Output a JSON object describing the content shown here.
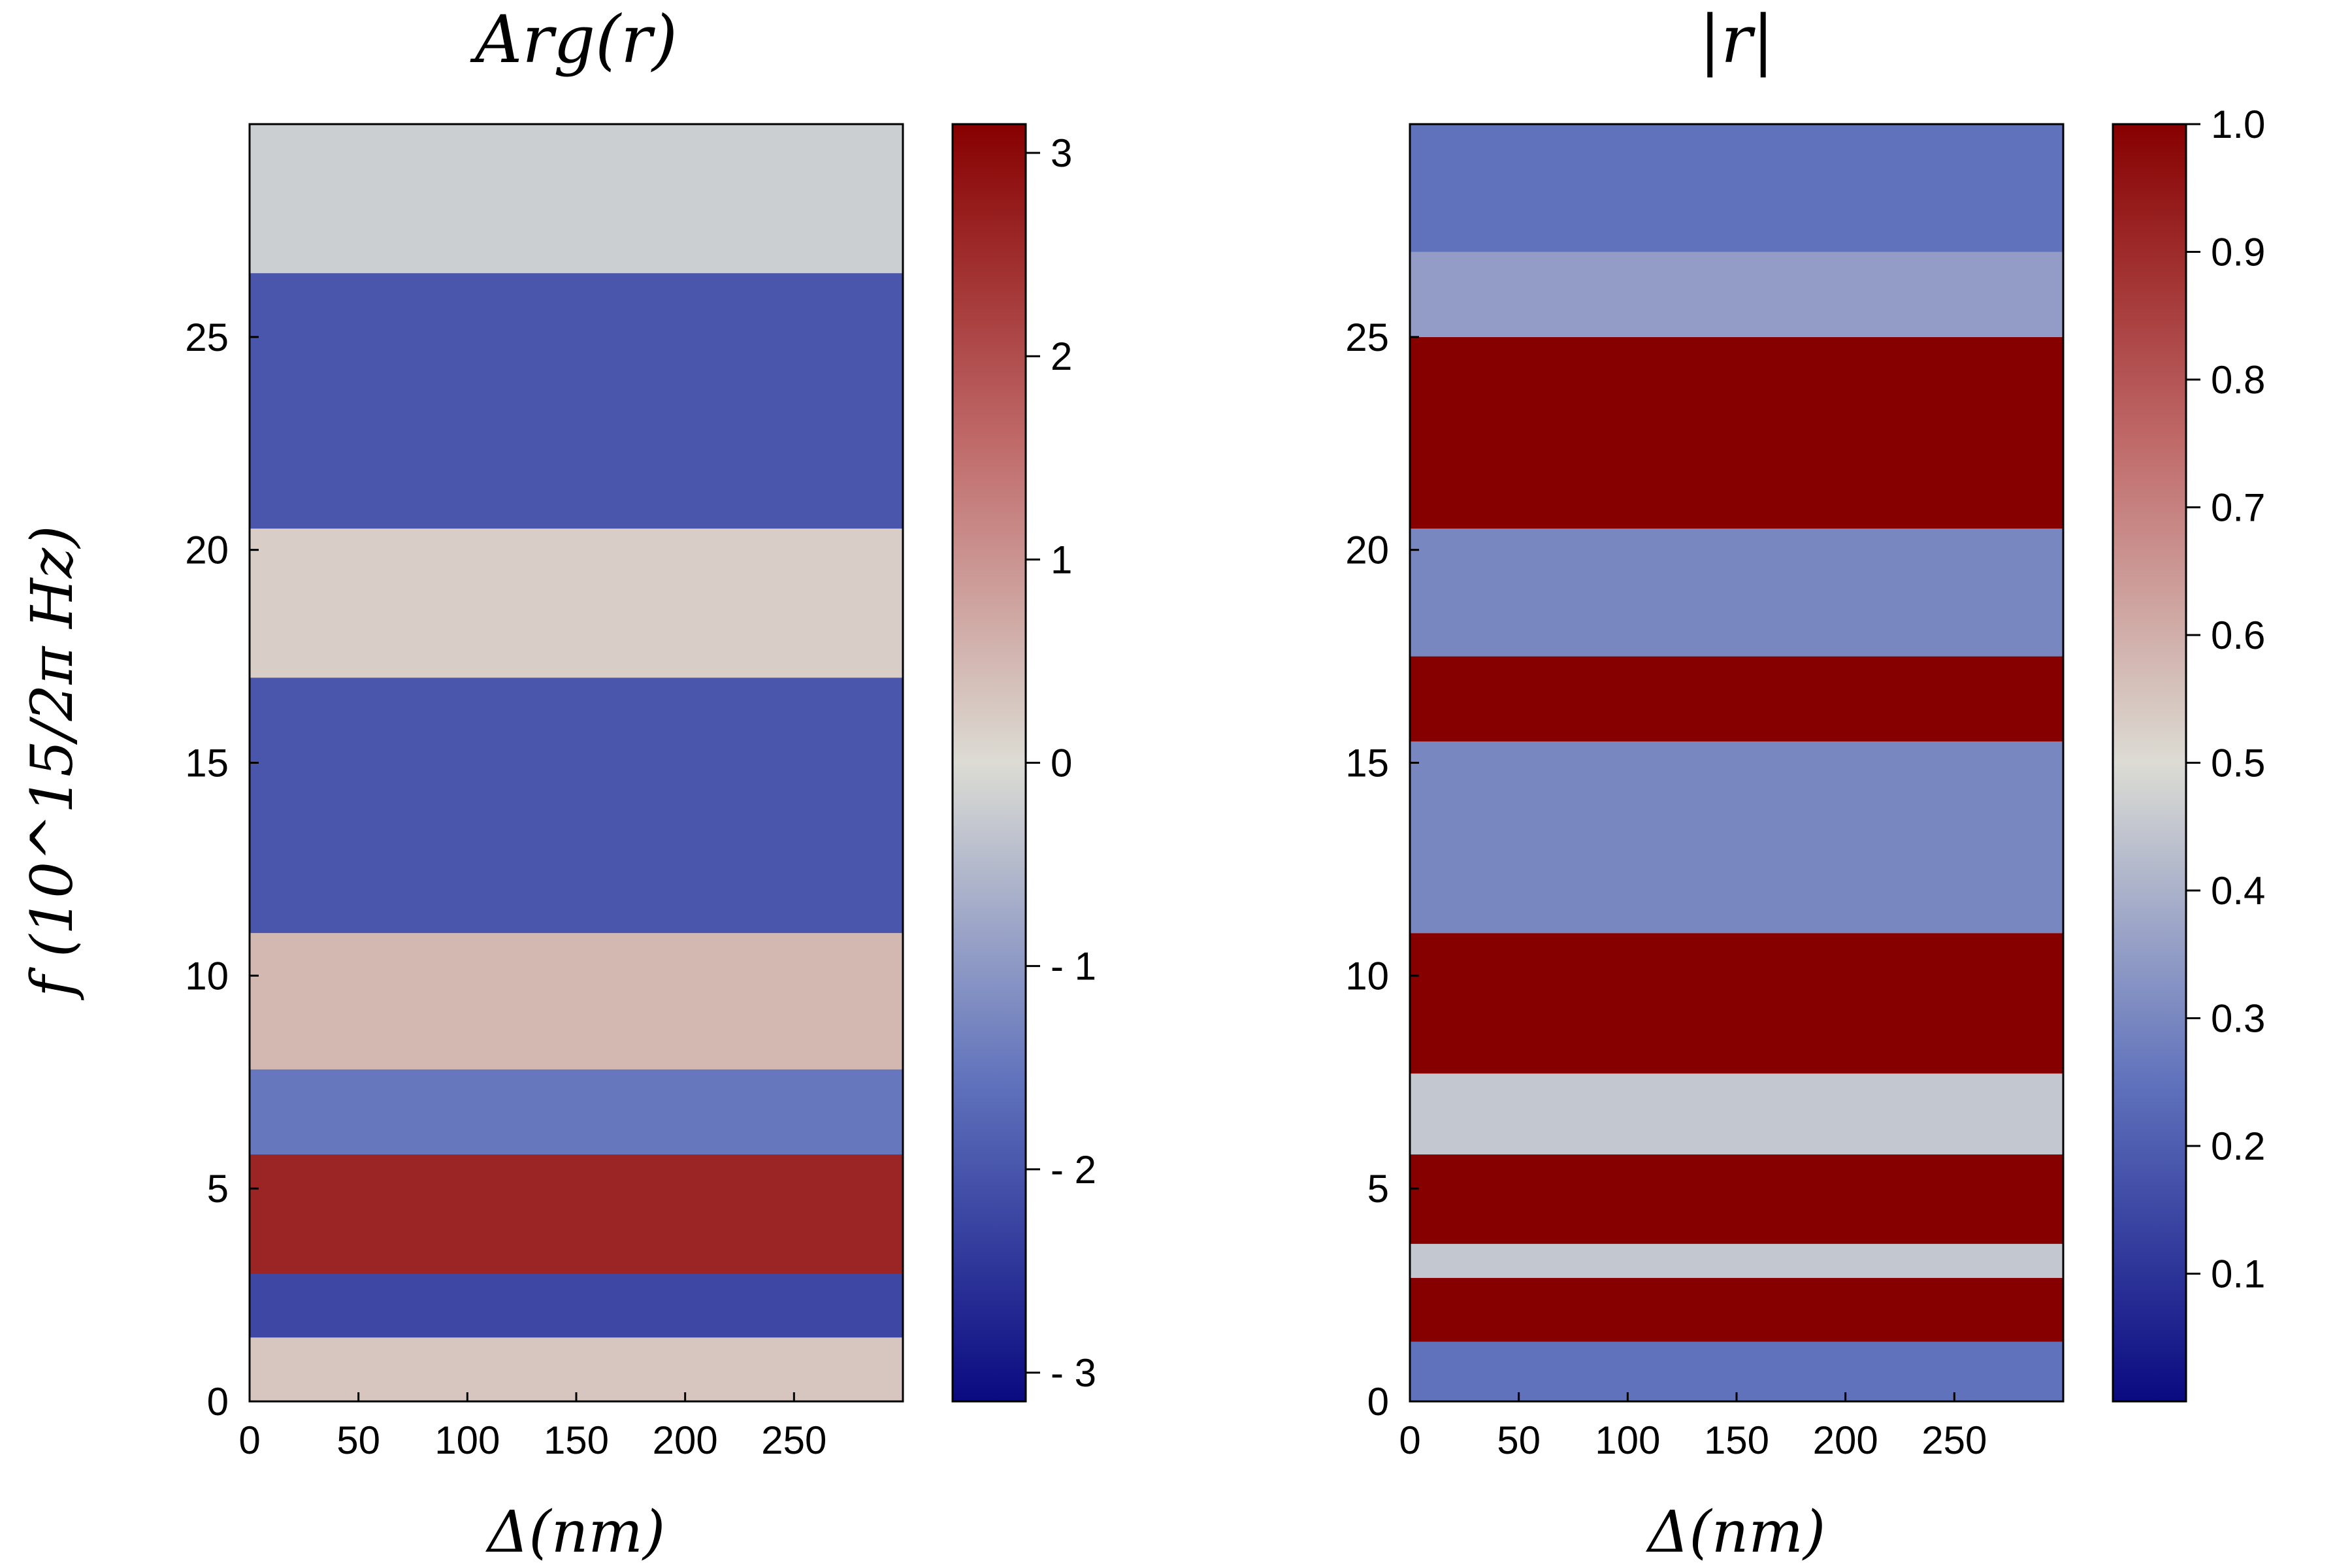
{
  "figure": {
    "ylabel": "f (10^15/2π Hz)"
  },
  "colors": {
    "low": "#0d0d8a",
    "mid_low": "#7080c0",
    "mid": "#dcdcd4",
    "mid_high": "#c07070",
    "high": "#8b0000"
  },
  "chart_data": [
    {
      "type": "heatmap",
      "title": "Arg(r)",
      "xlabel": "Δ(nm)",
      "ylabel": "f (10^15/2π Hz)",
      "xlim": [
        0,
        300
      ],
      "ylim": [
        0,
        30
      ],
      "xticks": [
        0,
        50,
        100,
        150,
        200,
        250
      ],
      "yticks": [
        0,
        5,
        10,
        15,
        20,
        25
      ],
      "colorbar": {
        "range": [
          -3.1416,
          3.1416
        ],
        "ticks": [
          3,
          2,
          1,
          0,
          -1,
          -2,
          -3
        ],
        "tick_labels": [
          "3",
          "2",
          "1",
          "0",
          "- 1",
          "- 2",
          "- 3"
        ]
      },
      "bands": [
        {
          "f_start": 0,
          "f_end": 1.5,
          "value": 0.3
        },
        {
          "f_start": 1.5,
          "f_end": 3,
          "value": -2.2
        },
        {
          "f_start": 3,
          "f_end": 5.8,
          "value": 2.6
        },
        {
          "f_start": 5.8,
          "f_end": 7.8,
          "value": -1.5
        },
        {
          "f_start": 7.8,
          "f_end": 11,
          "value": 0.5
        },
        {
          "f_start": 11,
          "f_end": 17,
          "value": -2.0
        },
        {
          "f_start": 17,
          "f_end": 20.5,
          "value": 0.2
        },
        {
          "f_start": 20.5,
          "f_end": 26.5,
          "value": -2.0
        },
        {
          "f_start": 26.5,
          "f_end": 30,
          "value": -0.2
        }
      ]
    },
    {
      "type": "heatmap",
      "title": "|r|",
      "xlabel": "Δ(nm)",
      "xlim": [
        0,
        300
      ],
      "ylim": [
        0,
        30
      ],
      "xticks": [
        0,
        50,
        100,
        150,
        200,
        250
      ],
      "yticks": [
        0,
        5,
        10,
        15,
        20,
        25
      ],
      "colorbar": {
        "range": [
          0,
          1
        ],
        "ticks": [
          1.0,
          0.9,
          0.8,
          0.7,
          0.6,
          0.5,
          0.4,
          0.3,
          0.2,
          0.1
        ],
        "tick_labels": [
          "1.0",
          "0.9",
          "0.8",
          "0.7",
          "0.6",
          "0.5",
          "0.4",
          "0.3",
          "0.2",
          "0.1"
        ]
      },
      "bands": [
        {
          "f_start": 0,
          "f_end": 1.4,
          "value": 0.25
        },
        {
          "f_start": 1.4,
          "f_end": 2.9,
          "value": 1.0
        },
        {
          "f_start": 2.9,
          "f_end": 3.7,
          "value": 0.45
        },
        {
          "f_start": 3.7,
          "f_end": 5.8,
          "value": 1.0
        },
        {
          "f_start": 5.8,
          "f_end": 7.7,
          "value": 0.45
        },
        {
          "f_start": 7.7,
          "f_end": 11,
          "value": 1.0
        },
        {
          "f_start": 11,
          "f_end": 15.5,
          "value": 0.3
        },
        {
          "f_start": 15.5,
          "f_end": 17.5,
          "value": 1.0
        },
        {
          "f_start": 17.5,
          "f_end": 20.5,
          "value": 0.3
        },
        {
          "f_start": 20.5,
          "f_end": 25,
          "value": 1.0
        },
        {
          "f_start": 25,
          "f_end": 27,
          "value": 0.35
        },
        {
          "f_start": 27,
          "f_end": 30,
          "value": 0.25
        }
      ]
    }
  ]
}
